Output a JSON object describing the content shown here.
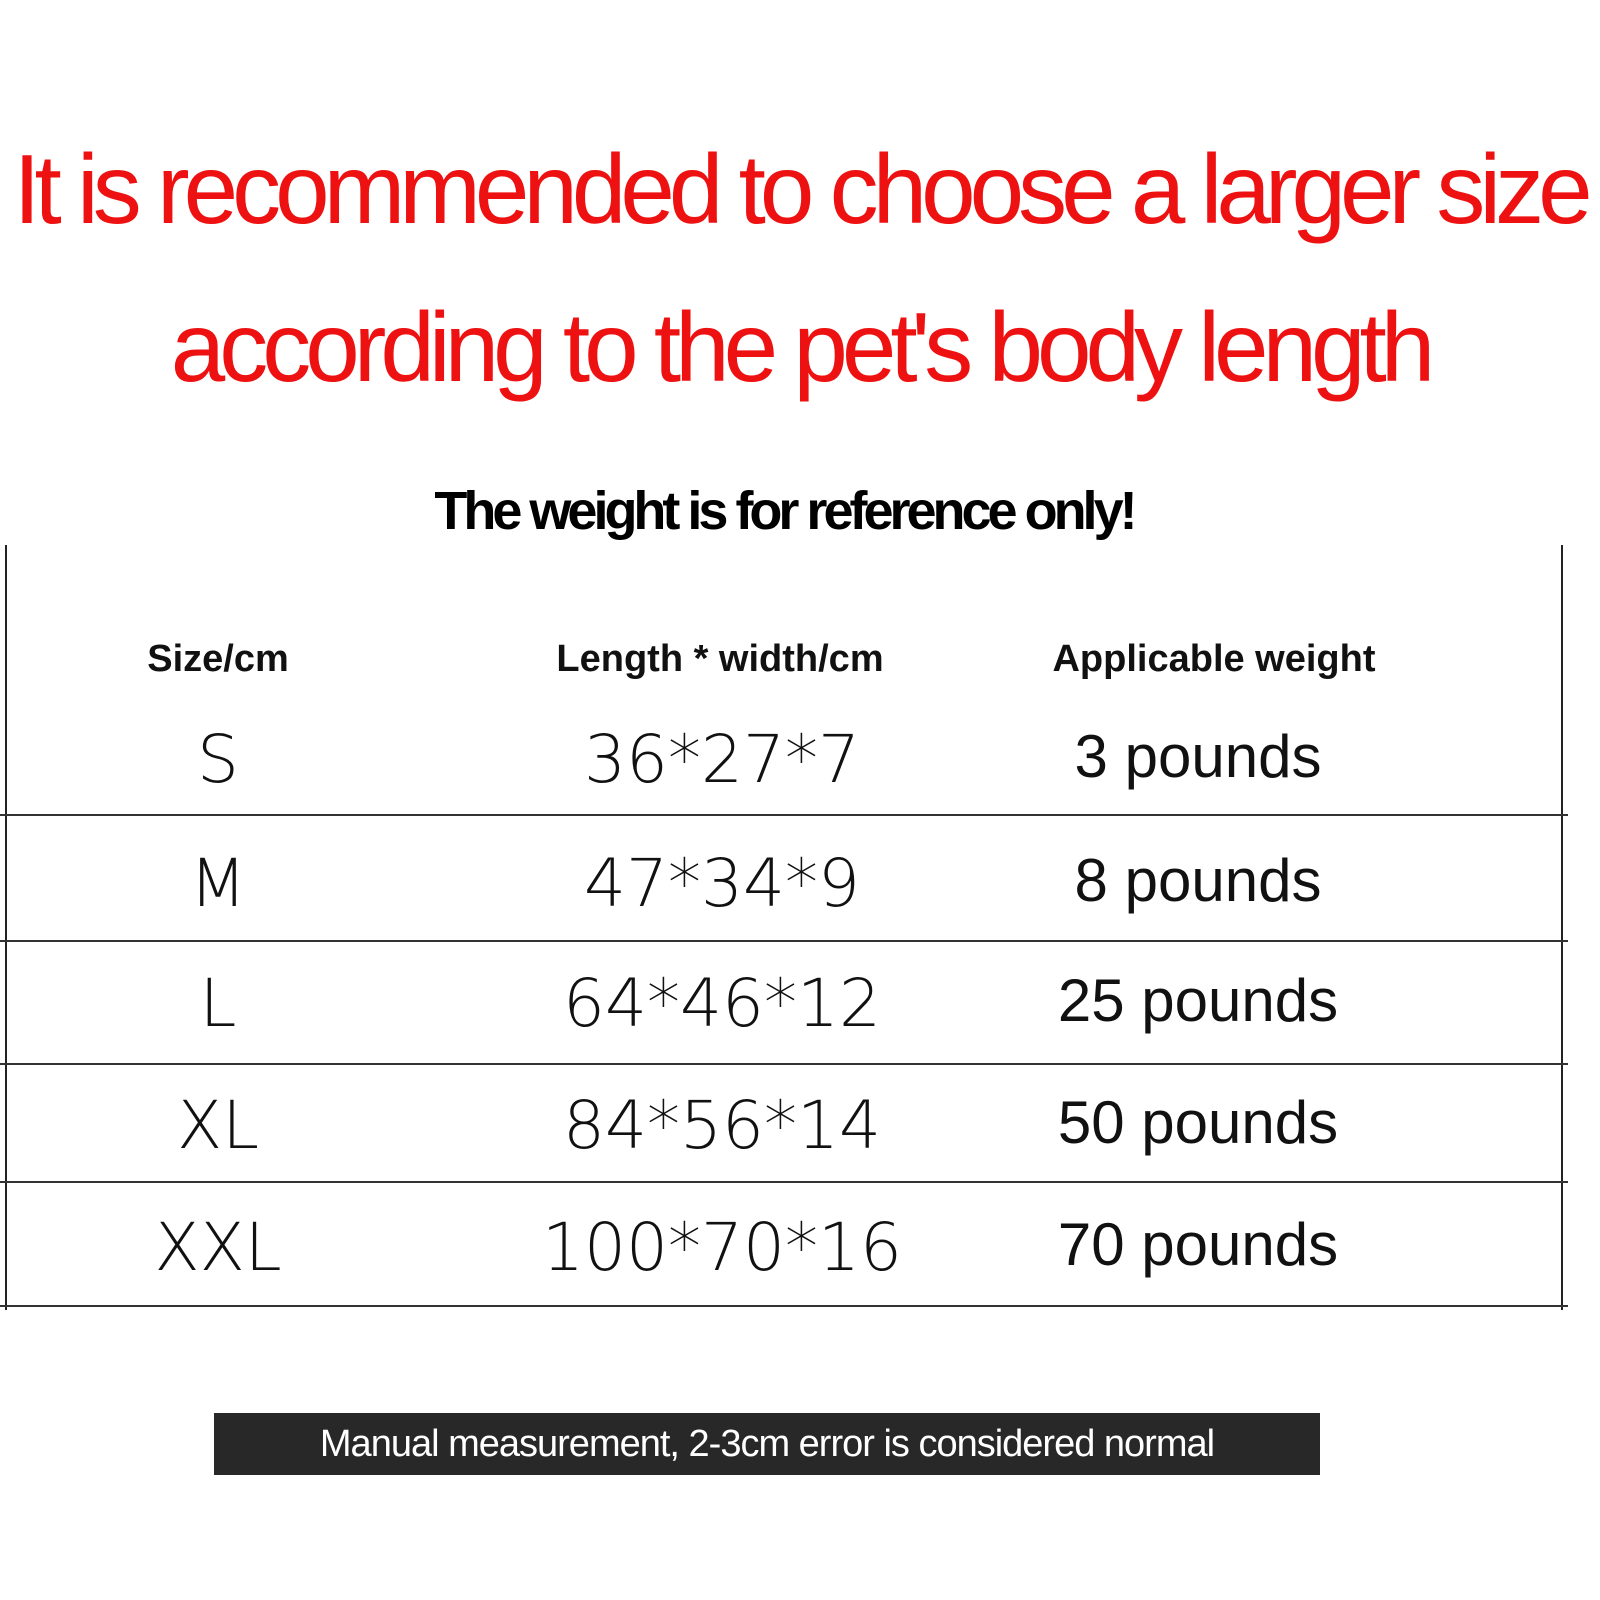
{
  "title_lines": [
    "It is recommended to choose a larger size",
    "according to the pet's body length"
  ],
  "subtitle": "The weight is for reference only!",
  "table": {
    "headers": [
      "Size/cm",
      "Length * width/cm",
      "Applicable weight"
    ],
    "rows": [
      {
        "size": "S",
        "dims": "36*27*7",
        "weight": "3 pounds"
      },
      {
        "size": "M",
        "dims": "47*34*9",
        "weight": "8 pounds"
      },
      {
        "size": "L",
        "dims": "64*46*12",
        "weight": "25 pounds"
      },
      {
        "size": "XL",
        "dims": "84*56*14",
        "weight": "50 pounds"
      },
      {
        "size": "XXL",
        "dims": "100*70*16",
        "weight": "70 pounds"
      }
    ]
  },
  "footer_note": "Manual measurement, 2-3cm error is considered normal",
  "colors": {
    "title": "#ee1111",
    "banner": "#282828"
  }
}
